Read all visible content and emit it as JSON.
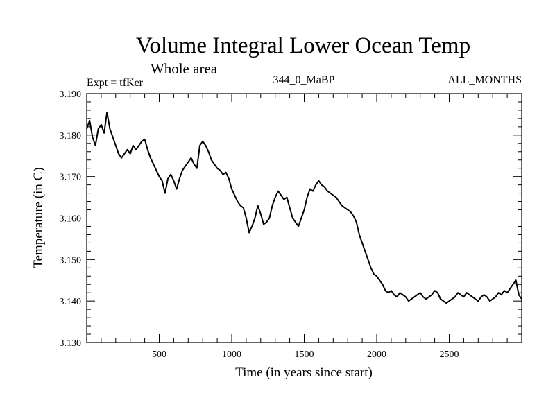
{
  "chart_data": {
    "type": "line",
    "title": "Volume Integral Lower Ocean Temp",
    "subtitle": "Whole area",
    "expt_label": "Expt = tfKer",
    "run_label": "344_0_MaBP",
    "months_label": "ALL_MONTHS",
    "xlabel": "Time (in years since start)",
    "ylabel": "Temperature (in C)",
    "xlim": [
      0,
      3000
    ],
    "ylim": [
      3.13,
      3.19
    ],
    "x_ticks": [
      500,
      1000,
      1500,
      2000,
      2500
    ],
    "x_tick_labels": [
      "500",
      "1000",
      "1500",
      "2000",
      "2500"
    ],
    "y_ticks": [
      3.13,
      3.14,
      3.15,
      3.16,
      3.17,
      3.18,
      3.19
    ],
    "y_tick_labels": [
      "3.130",
      "3.140",
      "3.150",
      "3.160",
      "3.170",
      "3.180",
      "3.190"
    ],
    "grid": false,
    "line_color": "#000000",
    "series": [
      {
        "x": [
          0,
          20,
          40,
          60,
          80,
          100,
          120,
          140,
          160,
          180,
          200,
          220,
          240,
          260,
          280,
          300,
          320,
          340,
          360,
          380,
          400,
          420,
          440,
          460,
          480,
          500,
          520,
          540,
          560,
          580,
          600,
          620,
          640,
          660,
          680,
          700,
          720,
          740,
          760,
          780,
          800,
          820,
          840,
          860,
          880,
          900,
          920,
          940,
          960,
          980,
          1000,
          1020,
          1040,
          1060,
          1080,
          1100,
          1120,
          1140,
          1160,
          1180,
          1200,
          1220,
          1240,
          1260,
          1280,
          1300,
          1320,
          1340,
          1360,
          1380,
          1400,
          1420,
          1440,
          1460,
          1480,
          1500,
          1520,
          1540,
          1560,
          1580,
          1600,
          1620,
          1640,
          1660,
          1680,
          1700,
          1720,
          1740,
          1760,
          1780,
          1800,
          1820,
          1840,
          1860,
          1880,
          1900,
          1920,
          1940,
          1960,
          1980,
          2000,
          2020,
          2040,
          2060,
          2080,
          2100,
          2120,
          2140,
          2160,
          2180,
          2200,
          2220,
          2240,
          2260,
          2280,
          2300,
          2320,
          2340,
          2360,
          2380,
          2400,
          2420,
          2440,
          2460,
          2480,
          2500,
          2520,
          2540,
          2560,
          2580,
          2600,
          2620,
          2640,
          2660,
          2680,
          2700,
          2720,
          2740,
          2760,
          2780,
          2800,
          2820,
          2840,
          2860,
          2880,
          2900,
          2920,
          2940,
          2960,
          2980,
          3000
        ],
        "values": [
          3.1815,
          3.1835,
          3.1795,
          3.1775,
          3.1815,
          3.1825,
          3.1805,
          3.1855,
          3.1815,
          3.1795,
          3.1775,
          3.1755,
          3.1745,
          3.1755,
          3.1765,
          3.1755,
          3.1775,
          3.1765,
          3.1775,
          3.1785,
          3.179,
          3.1765,
          3.1745,
          3.173,
          3.1715,
          3.17,
          3.169,
          3.166,
          3.1695,
          3.1705,
          3.169,
          3.167,
          3.1695,
          3.1715,
          3.1725,
          3.1735,
          3.1745,
          3.173,
          3.172,
          3.1775,
          3.1785,
          3.1775,
          3.176,
          3.174,
          3.173,
          3.172,
          3.1715,
          3.1705,
          3.171,
          3.1695,
          3.167,
          3.1655,
          3.164,
          3.163,
          3.1625,
          3.16,
          3.1565,
          3.158,
          3.16,
          3.163,
          3.161,
          3.1585,
          3.159,
          3.16,
          3.163,
          3.165,
          3.1665,
          3.1655,
          3.1645,
          3.165,
          3.1625,
          3.16,
          3.159,
          3.158,
          3.16,
          3.162,
          3.165,
          3.167,
          3.1665,
          3.168,
          3.169,
          3.168,
          3.1675,
          3.1665,
          3.166,
          3.1655,
          3.165,
          3.164,
          3.163,
          3.1625,
          3.162,
          3.1615,
          3.1605,
          3.159,
          3.156,
          3.154,
          3.152,
          3.15,
          3.148,
          3.1465,
          3.146,
          3.145,
          3.144,
          3.1425,
          3.142,
          3.1425,
          3.1415,
          3.141,
          3.142,
          3.1415,
          3.141,
          3.14,
          3.1405,
          3.141,
          3.1415,
          3.142,
          3.141,
          3.1405,
          3.141,
          3.1415,
          3.1425,
          3.142,
          3.1405,
          3.14,
          3.1395,
          3.14,
          3.1405,
          3.141,
          3.142,
          3.1415,
          3.141,
          3.142,
          3.1415,
          3.141,
          3.1405,
          3.14,
          3.141,
          3.1415,
          3.141,
          3.14,
          3.1405,
          3.141,
          3.142,
          3.1415,
          3.1425,
          3.142,
          3.143,
          3.144,
          3.145,
          3.1415,
          3.1405
        ]
      }
    ]
  }
}
